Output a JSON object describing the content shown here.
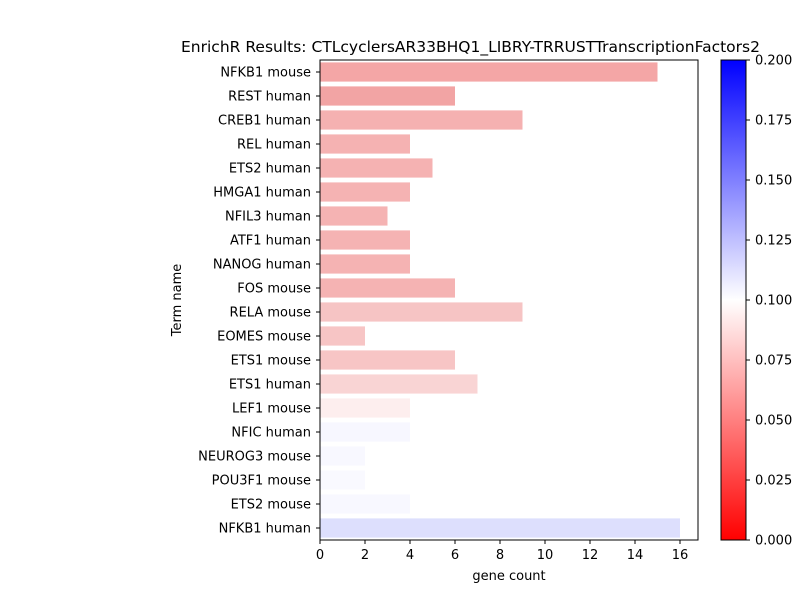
{
  "chart_data": {
    "type": "bar",
    "orientation": "horizontal",
    "title": "EnrichR Results: CTLcyclersAR33BHQ1_LIBRY-TRRUSTTranscriptionFactors2",
    "xlabel": "gene count",
    "ylabel": "Term name",
    "xlim": [
      0,
      16.8
    ],
    "xticks": [
      0,
      2,
      4,
      6,
      8,
      10,
      12,
      14,
      16
    ],
    "grid": false,
    "categories": [
      "NFKB1 mouse",
      "REST human",
      "CREB1 human",
      "REL human",
      "ETS2 human",
      "HMGA1 human",
      "NFIL3 human",
      "ATF1 human",
      "NANOG human",
      "FOS mouse",
      "RELA mouse",
      "EOMES mouse",
      "ETS1 mouse",
      "ETS1 human",
      "LEF1 mouse",
      "NFIC human",
      "NEUROG3 mouse",
      "POU3F1 mouse",
      "ETS2 mouse",
      "NFKB1 human"
    ],
    "values": [
      15,
      6,
      9,
      4,
      5,
      4,
      3,
      4,
      4,
      6,
      9,
      2,
      6,
      7,
      4,
      4,
      2,
      2,
      4,
      16
    ],
    "colors": [
      "#f4a6a6",
      "#f2a4a4",
      "#f5b1b1",
      "#f5b2b2",
      "#f5b2b2",
      "#f5b3b3",
      "#f5b3b3",
      "#f5b3b3",
      "#f5b3b3",
      "#f5b3b3",
      "#f6c4c4",
      "#f7c5c5",
      "#f7c5c5",
      "#f9d4d4",
      "#fdeeee",
      "#f7f7ff",
      "#f8f8ff",
      "#f9f9ff",
      "#f8f8ff",
      "#dddffd"
    ],
    "colorbar": {
      "label": "",
      "range": [
        0.0,
        0.2
      ],
      "ticks": [
        "0.000",
        "0.025",
        "0.050",
        "0.075",
        "0.100",
        "0.125",
        "0.150",
        "0.175",
        "0.200"
      ],
      "low_color": "#ff0000",
      "mid_color": "#ffffff",
      "high_color": "#0000ff"
    }
  }
}
